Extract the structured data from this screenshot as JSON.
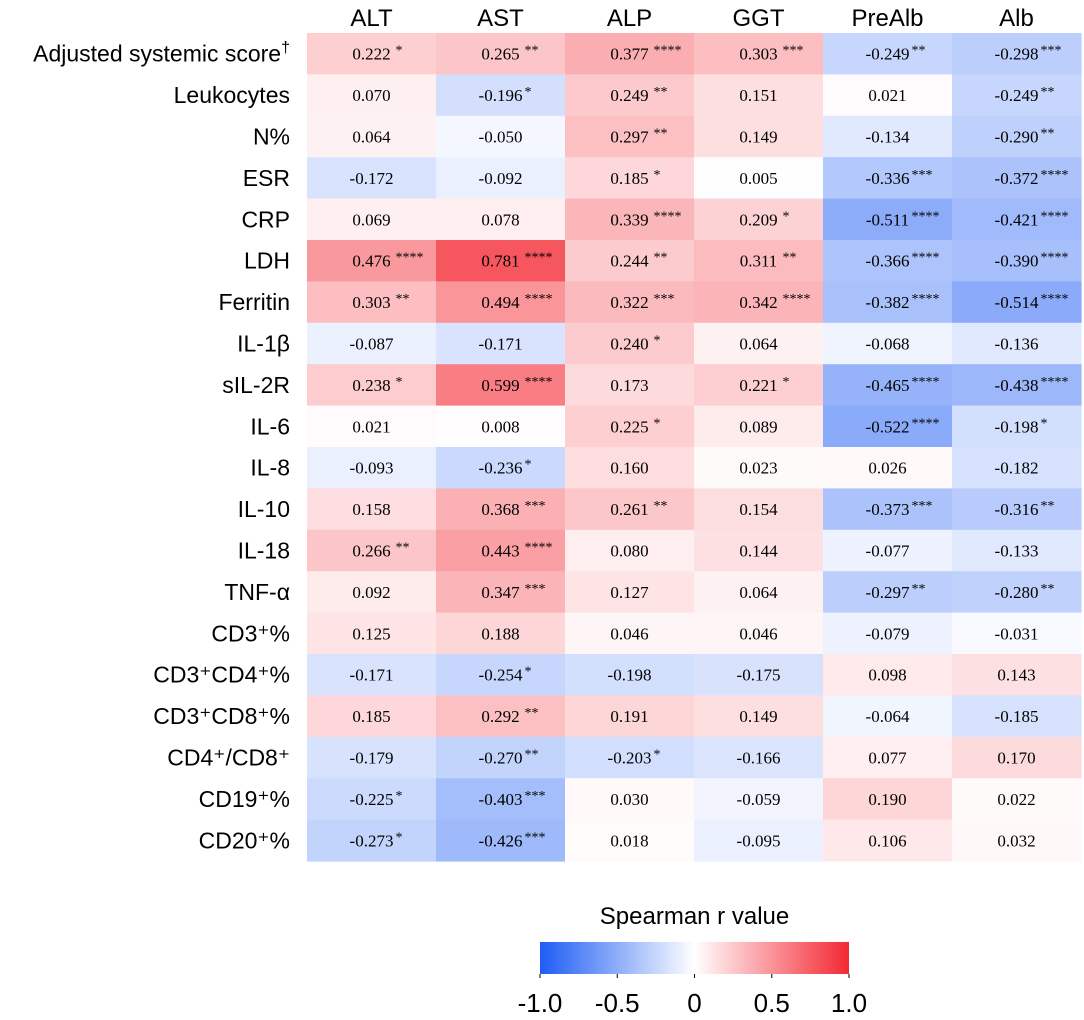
{
  "chart_data": {
    "type": "heatmap",
    "columns": [
      "ALT",
      "AST",
      "ALP",
      "GGT",
      "PreAlb",
      "Alb"
    ],
    "rows": [
      {
        "label": "Adjusted systemic score",
        "sup": "†",
        "values": [
          0.222,
          0.265,
          0.377,
          0.303,
          -0.249,
          -0.298
        ],
        "text": [
          "0.222",
          "0.265",
          "0.377",
          "0.303",
          "-0.249",
          "-0.298"
        ],
        "stars": [
          "*",
          "**",
          "****",
          "***",
          "**",
          "***"
        ]
      },
      {
        "label": "Leukocytes",
        "sup": "",
        "values": [
          0.07,
          -0.196,
          0.249,
          0.151,
          0.021,
          -0.249
        ],
        "text": [
          "0.070",
          "-0.196",
          "0.249",
          "0.151",
          "0.021",
          "-0.249"
        ],
        "stars": [
          "",
          "*",
          "**",
          "",
          "",
          "**"
        ]
      },
      {
        "label": "N%",
        "sup": "",
        "values": [
          0.064,
          -0.05,
          0.297,
          0.149,
          -0.134,
          -0.29
        ],
        "text": [
          "0.064",
          "-0.050",
          "0.297",
          "0.149",
          "-0.134",
          "-0.290"
        ],
        "stars": [
          "",
          "",
          "**",
          "",
          "",
          "**"
        ]
      },
      {
        "label": "ESR",
        "sup": "",
        "values": [
          -0.172,
          -0.092,
          0.185,
          0.005,
          -0.336,
          -0.372
        ],
        "text": [
          "-0.172",
          "-0.092",
          "0.185",
          "0.005",
          "-0.336",
          "-0.372"
        ],
        "stars": [
          "",
          "",
          "*",
          "",
          "***",
          "****"
        ]
      },
      {
        "label": "CRP",
        "sup": "",
        "values": [
          0.069,
          0.078,
          0.339,
          0.209,
          -0.511,
          -0.421
        ],
        "text": [
          "0.069",
          "0.078",
          "0.339",
          "0.209",
          "-0.511",
          "-0.421"
        ],
        "stars": [
          "",
          "",
          "****",
          "*",
          "****",
          "****"
        ]
      },
      {
        "label": "LDH",
        "sup": "",
        "values": [
          0.476,
          0.781,
          0.244,
          0.311,
          -0.366,
          -0.39
        ],
        "text": [
          "0.476",
          "0.781",
          "0.244",
          "0.311",
          "-0.366",
          "-0.390"
        ],
        "stars": [
          "****",
          "****",
          "**",
          "**",
          "****",
          "****"
        ]
      },
      {
        "label": "Ferritin",
        "sup": "",
        "values": [
          0.303,
          0.494,
          0.322,
          0.342,
          -0.382,
          -0.514
        ],
        "text": [
          "0.303",
          "0.494",
          "0.322",
          "0.342",
          "-0.382",
          "-0.514"
        ],
        "stars": [
          "**",
          "****",
          "***",
          "****",
          "****",
          "****"
        ]
      },
      {
        "label": "IL-1β",
        "sup": "",
        "values": [
          -0.087,
          -0.171,
          0.24,
          0.064,
          -0.068,
          -0.136
        ],
        "text": [
          "-0.087",
          "-0.171",
          "0.240",
          "0.064",
          "-0.068",
          "-0.136"
        ],
        "stars": [
          "",
          "",
          "*",
          "",
          "",
          ""
        ]
      },
      {
        "label": "sIL-2R",
        "sup": "",
        "values": [
          0.238,
          0.599,
          0.173,
          0.221,
          -0.465,
          -0.438
        ],
        "text": [
          "0.238",
          "0.599",
          "0.173",
          "0.221",
          "-0.465",
          "-0.438"
        ],
        "stars": [
          "*",
          "****",
          "",
          "*",
          "****",
          "****"
        ]
      },
      {
        "label": "IL-6",
        "sup": "",
        "values": [
          0.021,
          0.008,
          0.225,
          0.089,
          -0.522,
          -0.198
        ],
        "text": [
          "0.021",
          "0.008",
          "0.225",
          "0.089",
          "-0.522",
          "-0.198"
        ],
        "stars": [
          "",
          "",
          "*",
          "",
          "****",
          "*"
        ]
      },
      {
        "label": "IL-8",
        "sup": "",
        "values": [
          -0.093,
          -0.236,
          0.16,
          0.023,
          0.026,
          -0.182
        ],
        "text": [
          "-0.093",
          "-0.236",
          "0.160",
          "0.023",
          "0.026",
          "-0.182"
        ],
        "stars": [
          "",
          "*",
          "",
          "",
          "",
          ""
        ]
      },
      {
        "label": "IL-10",
        "sup": "",
        "values": [
          0.158,
          0.368,
          0.261,
          0.154,
          -0.373,
          -0.316
        ],
        "text": [
          "0.158",
          "0.368",
          "0.261",
          "0.154",
          "-0.373",
          "-0.316"
        ],
        "stars": [
          "",
          "***",
          "**",
          "",
          "***",
          "**"
        ]
      },
      {
        "label": "IL-18",
        "sup": "",
        "values": [
          0.266,
          0.443,
          0.08,
          0.144,
          -0.077,
          -0.133
        ],
        "text": [
          "0.266",
          "0.443",
          "0.080",
          "0.144",
          "-0.077",
          "-0.133"
        ],
        "stars": [
          "**",
          "****",
          "",
          "",
          "",
          ""
        ]
      },
      {
        "label": "TNF-α",
        "sup": "",
        "values": [
          0.092,
          0.347,
          0.127,
          0.064,
          -0.297,
          -0.28
        ],
        "text": [
          "0.092",
          "0.347",
          "0.127",
          "0.064",
          "-0.297",
          "-0.280"
        ],
        "stars": [
          "",
          "***",
          "",
          "",
          "**",
          "**"
        ]
      },
      {
        "label": "CD3⁺%",
        "sup": "",
        "values": [
          0.125,
          0.188,
          0.046,
          0.046,
          -0.079,
          -0.031
        ],
        "text": [
          "0.125",
          "0.188",
          "0.046",
          "0.046",
          "-0.079",
          "-0.031"
        ],
        "stars": [
          "",
          "",
          "",
          "",
          "",
          ""
        ]
      },
      {
        "label": "CD3⁺CD4⁺%",
        "sup": "",
        "values": [
          -0.171,
          -0.254,
          -0.198,
          -0.175,
          0.098,
          0.143
        ],
        "text": [
          "-0.171",
          "-0.254",
          "-0.198",
          "-0.175",
          "0.098",
          "0.143"
        ],
        "stars": [
          "",
          "*",
          "",
          "",
          "",
          ""
        ]
      },
      {
        "label": "CD3⁺CD8⁺%",
        "sup": "",
        "values": [
          0.185,
          0.292,
          0.191,
          0.149,
          -0.064,
          -0.185
        ],
        "text": [
          "0.185",
          "0.292",
          "0.191",
          "0.149",
          "-0.064",
          "-0.185"
        ],
        "stars": [
          "",
          "**",
          "",
          "",
          "",
          ""
        ]
      },
      {
        "label": "CD4⁺/CD8⁺",
        "sup": "",
        "values": [
          -0.179,
          -0.27,
          -0.203,
          -0.166,
          0.077,
          0.17
        ],
        "text": [
          "-0.179",
          "-0.270",
          "-0.203",
          "-0.166",
          "0.077",
          "0.170"
        ],
        "stars": [
          "",
          "**",
          "*",
          "",
          "",
          ""
        ]
      },
      {
        "label": "CD19⁺%",
        "sup": "",
        "values": [
          -0.225,
          -0.403,
          0.03,
          -0.059,
          0.19,
          0.022
        ],
        "text": [
          "-0.225",
          "-0.403",
          "0.030",
          "-0.059",
          "0.190",
          "0.022"
        ],
        "stars": [
          "*",
          "***",
          "",
          "",
          "",
          ""
        ]
      },
      {
        "label": "CD20⁺%",
        "sup": "",
        "values": [
          -0.273,
          -0.426,
          0.018,
          -0.095,
          0.106,
          0.032
        ],
        "text": [
          "-0.273",
          "-0.426",
          "0.018",
          "-0.095",
          "0.106",
          "0.032"
        ],
        "stars": [
          "*",
          "***",
          "",
          "",
          "",
          ""
        ]
      }
    ],
    "legend": {
      "title": "Spearman r value",
      "min": -1.0,
      "max": 1.0,
      "ticks": [
        -1.0,
        -0.5,
        0,
        0.5,
        1.0
      ],
      "tick_labels": [
        "-1.0",
        "-0.5",
        "0",
        "0.5",
        "1.0"
      ],
      "colors": {
        "negative": "#1e5cf5",
        "zero": "#ffffff",
        "positive": "#f42832"
      }
    }
  }
}
